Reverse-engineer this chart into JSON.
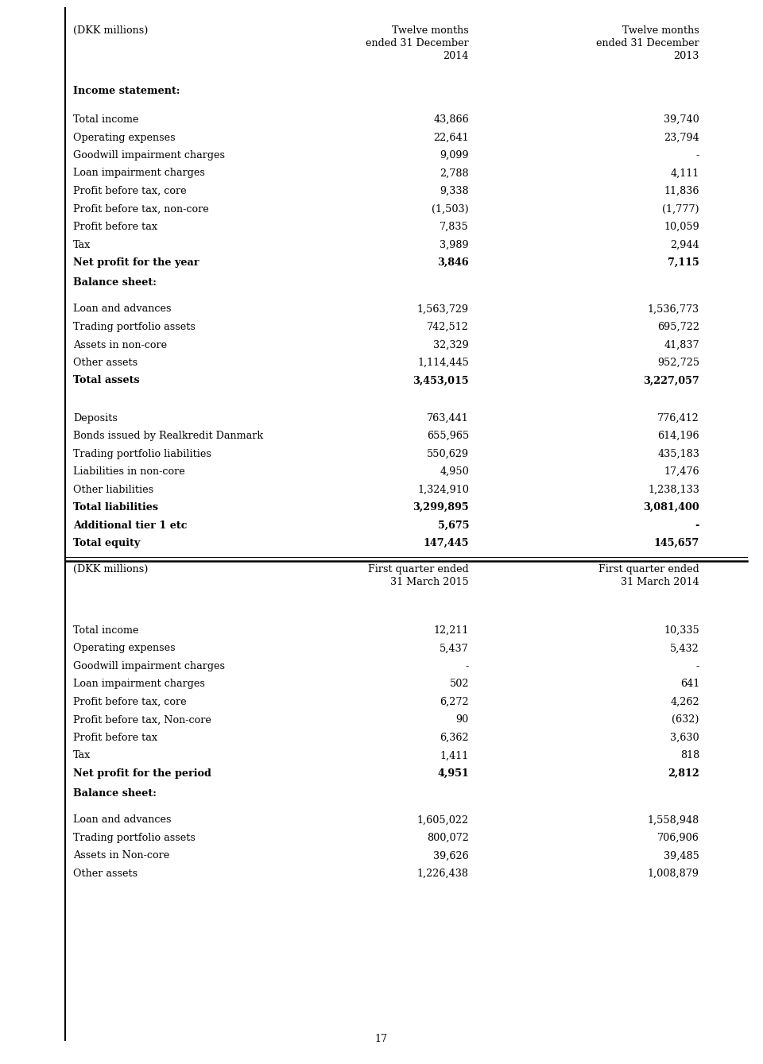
{
  "background_color": "#ffffff",
  "page_number": "17",
  "fig_width": 9.6,
  "fig_height": 13.39,
  "dpi": 100,
  "section1": {
    "col1_header": "(DKK millions)",
    "col2_header": "Twelve months\nended 31 December\n2014",
    "col3_header": "Twelve months\nended 31 December\n2013",
    "income_statement_label": "Income statement:",
    "income_rows": [
      [
        "Total income",
        "43,866",
        "39,740",
        false
      ],
      [
        "Operating expenses",
        "22,641",
        "23,794",
        false
      ],
      [
        "Goodwill impairment charges",
        "9,099",
        "-",
        false
      ],
      [
        "Loan impairment charges",
        "2,788",
        "4,111",
        false
      ],
      [
        "Profit before tax, core",
        "9,338",
        "11,836",
        false
      ],
      [
        "Profit before tax, non-core",
        "(1,503)",
        "(1,777)",
        false
      ],
      [
        "Profit before tax",
        "7,835",
        "10,059",
        false
      ],
      [
        "Tax",
        "3,989",
        "2,944",
        false
      ],
      [
        "Net profit for the year",
        "3,846",
        "7,115",
        true
      ]
    ],
    "balance_sheet_label": "Balance sheet:",
    "balance_rows": [
      [
        "Loan and advances",
        "1,563,729",
        "1,536,773",
        false
      ],
      [
        "Trading portfolio assets",
        "742,512",
        "695,722",
        false
      ],
      [
        "Assets in non-core",
        "32,329",
        "41,837",
        false
      ],
      [
        "Other assets",
        "1,114,445",
        "952,725",
        false
      ],
      [
        "Total assets",
        "3,453,015",
        "3,227,057",
        true
      ]
    ],
    "liabilities_rows": [
      [
        "Deposits",
        "763,441",
        "776,412",
        false
      ],
      [
        "Bonds issued by Realkredit Danmark",
        "655,965",
        "614,196",
        false
      ],
      [
        "Trading portfolio liabilities",
        "550,629",
        "435,183",
        false
      ],
      [
        "Liabilities in non-core",
        "4,950",
        "17,476",
        false
      ],
      [
        "Other liabilities",
        "1,324,910",
        "1,238,133",
        false
      ],
      [
        "Total liabilities",
        "3,299,895",
        "3,081,400",
        true
      ],
      [
        "Additional tier 1 etc",
        "5,675",
        "-",
        true
      ],
      [
        "Total equity",
        "147,445",
        "145,657",
        true
      ]
    ]
  },
  "section2": {
    "col1_header": "(DKK millions)",
    "col2_header": "First quarter ended\n31 March 2015",
    "col3_header": "First quarter ended\n31 March 2014",
    "income_rows": [
      [
        "Total income",
        "12,211",
        "10,335",
        false
      ],
      [
        "Operating expenses",
        "5,437",
        "5,432",
        false
      ],
      [
        "Goodwill impairment charges",
        "-",
        "-",
        false
      ],
      [
        "Loan impairment charges",
        "502",
        "641",
        false
      ],
      [
        "Profit before tax, core",
        "6,272",
        "4,262",
        false
      ],
      [
        "Profit before tax, Non-core",
        "90",
        "(632)",
        false
      ],
      [
        "Profit before tax",
        "6,362",
        "3,630",
        false
      ],
      [
        "Tax",
        "1,411",
        "818",
        false
      ],
      [
        "Net profit for the period",
        "4,951",
        "2,812",
        true
      ]
    ],
    "balance_sheet_label": "Balance sheet:",
    "balance_rows": [
      [
        "Loan and advances",
        "1,605,022",
        "1,558,948",
        false
      ],
      [
        "Trading portfolio assets",
        "800,072",
        "706,906",
        false
      ],
      [
        "Assets in Non-core",
        "39,626",
        "39,485",
        false
      ],
      [
        "Other assets",
        "1,226,438",
        "1,008,879",
        false
      ]
    ]
  }
}
